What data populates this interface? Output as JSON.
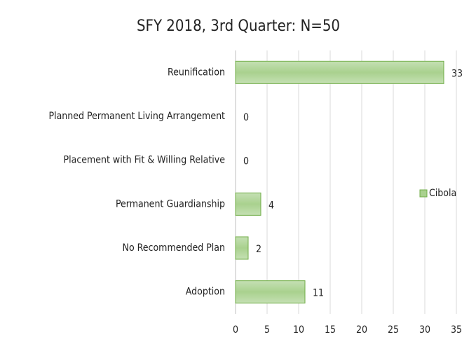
{
  "chart_data": {
    "type": "bar",
    "title": "SFY 2018, 3rd Quarter: N=50",
    "categories": [
      "Reunification",
      "Planned Permanent Living Arrangement",
      "Placement with Fit & Willing Relative",
      "Permanent Guardianship",
      "No Recommended Plan",
      "Adoption"
    ],
    "series": [
      {
        "name": "Cibola",
        "color": "#a9d18e",
        "values": [
          33,
          0,
          0,
          4,
          2,
          11
        ]
      }
    ],
    "xlim": [
      0,
      35
    ],
    "xticks": [
      0,
      5,
      10,
      15,
      20,
      25,
      30,
      35
    ],
    "grid": true,
    "legend": "right"
  }
}
